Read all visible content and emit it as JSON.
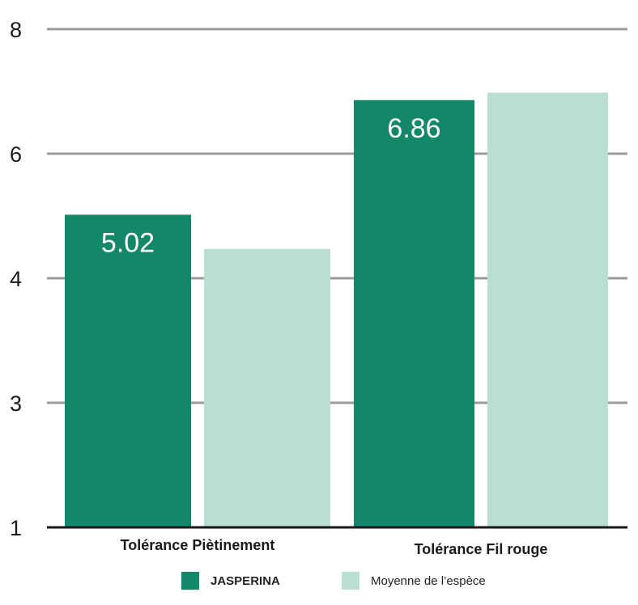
{
  "chart_data": {
    "type": "bar",
    "categories": [
      "Tolérance Piètinement",
      "Tolérance Fil rouge"
    ],
    "series": [
      {
        "name": "JASPERINA",
        "values": [
          5.02,
          6.86
        ],
        "color": "#138868",
        "labels": [
          "5.02",
          "6.86"
        ]
      },
      {
        "name": "Moyenne de l’espèce",
        "values": [
          4.47,
          6.98
        ],
        "color": "#b9dfd4",
        "labels": [
          "",
          ""
        ]
      }
    ],
    "yticks": [
      {
        "label": "8",
        "value": 8
      },
      {
        "label": "6",
        "value": 6
      },
      {
        "label": "4",
        "value": 4
      },
      {
        "label": "3",
        "value": 3
      },
      {
        "label": "1",
        "value": 1
      }
    ],
    "ylim": [
      1,
      8
    ],
    "grid": true,
    "legend": "bottom"
  },
  "legend": {
    "items": [
      {
        "label": "JASPERINA",
        "color": "#138868"
      },
      {
        "label": "Moyenne de l’espèce",
        "color": "#b9dfd4"
      }
    ]
  }
}
